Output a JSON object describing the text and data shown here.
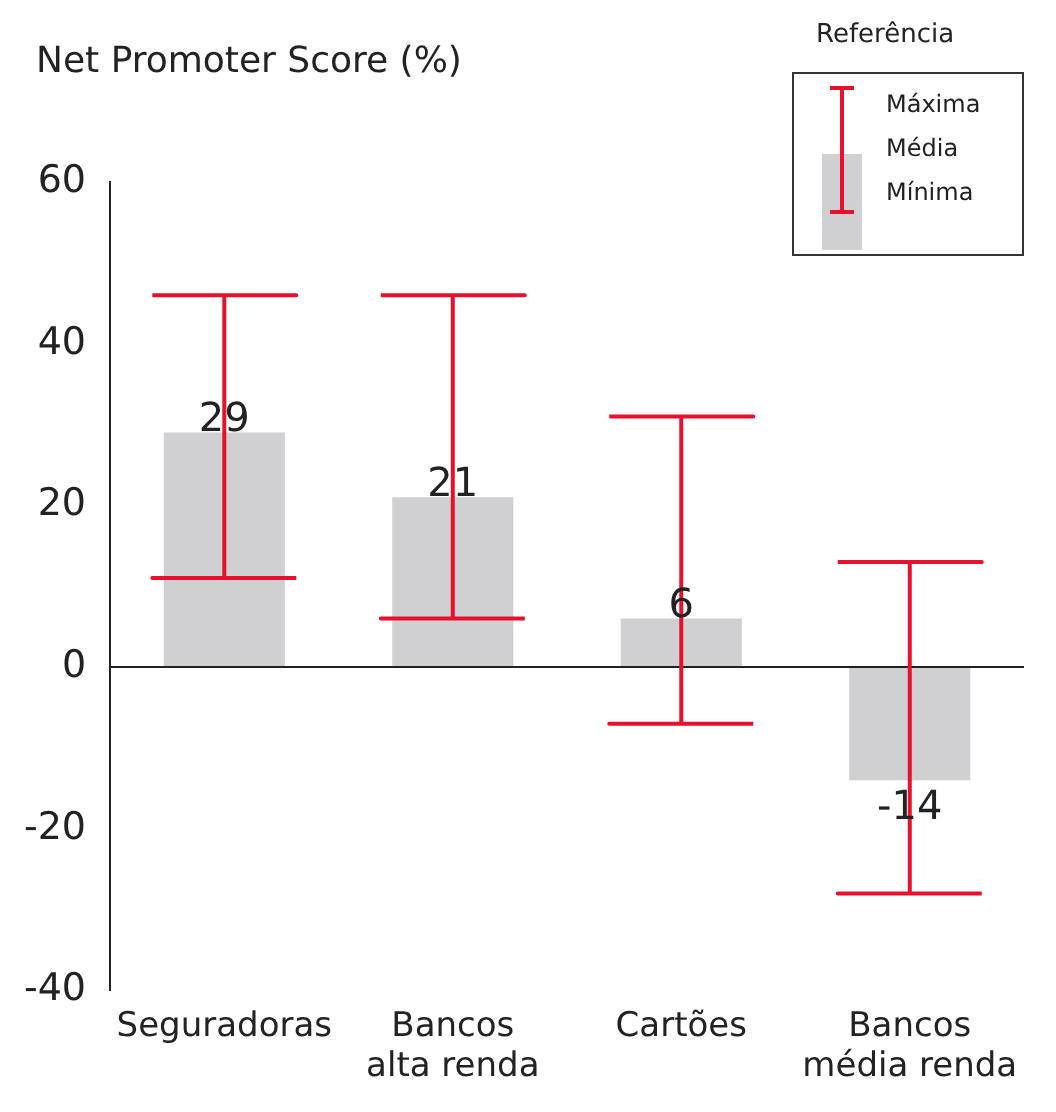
{
  "chart_data": {
    "type": "bar",
    "title": "Net Promoter Score (%)",
    "categories": [
      "Seguradoras",
      "Bancos\nalta renda",
      "Cartões",
      "Bancos\nmédia renda"
    ],
    "series": [
      {
        "name": "Média",
        "color": "#d0d0d2",
        "values": [
          29,
          21,
          6,
          -14
        ],
        "errors": [
          [
            11,
            46
          ],
          [
            6,
            46
          ],
          [
            -7,
            31
          ],
          [
            -28,
            13
          ]
        ]
      }
    ],
    "ref_lines": [
      {
        "axis": "y",
        "value": 0,
        "color": "#222222"
      }
    ],
    "ylim": [
      -40,
      60
    ],
    "yticks": [
      -40,
      -20,
      0,
      20,
      40,
      60
    ],
    "grid": false,
    "data_labels": true,
    "legend": "top right",
    "legend_title": "Referência",
    "annotations": [
      "Máxima",
      "Mínima"
    ]
  }
}
